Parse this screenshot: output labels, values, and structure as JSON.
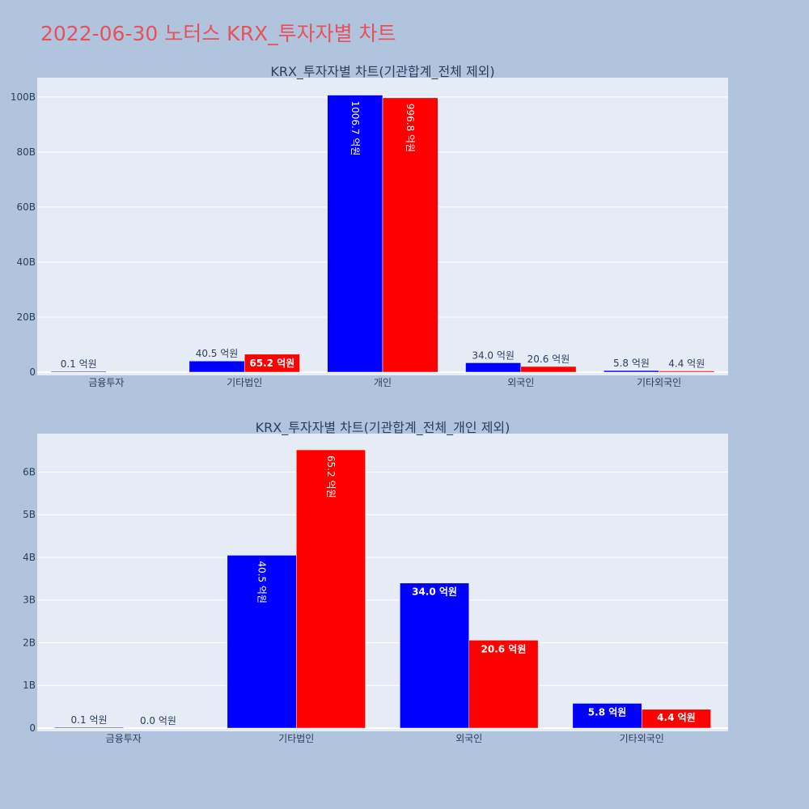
{
  "page_title": "2022-06-30 노터스 KRX_투자자별 차트",
  "colors": {
    "background": "#b0c4de",
    "plot_bg": "#e5ecf6",
    "series_a": "#0000ff",
    "series_b": "#ff0000",
    "title": "#e8505b"
  },
  "chart_data": [
    {
      "type": "bar",
      "title": "KRX_투자자별 차트(기관합계_전체 제외)",
      "categories": [
        "금융투자",
        "기타법인",
        "개인",
        "외국인",
        "기타외국인"
      ],
      "ylim": [
        0,
        107000000000
      ],
      "y_ticks": [
        0,
        20000000000,
        40000000000,
        60000000000,
        80000000000,
        100000000000
      ],
      "y_tick_labels": [
        "0",
        "20B",
        "40B",
        "60B",
        "80B",
        "100B"
      ],
      "grid": true,
      "series": [
        {
          "color": "#0000ff",
          "values": [
            10000000,
            4050000000,
            100670000000,
            3400000000,
            580000000
          ],
          "labels": [
            "0.1 억원",
            "40.5 억원",
            "1006.7 억원",
            "34.0 억원",
            "5.8 억원"
          ]
        },
        {
          "color": "#ff0000",
          "values": [
            0,
            6520000000,
            99680000000,
            2060000000,
            440000000
          ],
          "labels": [
            "",
            "65.2 억원",
            "996.8 억원",
            "20.6 억원",
            "4.4 억원"
          ]
        }
      ]
    },
    {
      "type": "bar",
      "title": "KRX_투자자별 차트(기관합계_전체_개인 제외)",
      "categories": [
        "금융투자",
        "기타법인",
        "외국인",
        "기타외국인"
      ],
      "ylim": [
        0,
        6900000000
      ],
      "y_ticks": [
        0,
        1000000000,
        2000000000,
        3000000000,
        4000000000,
        5000000000,
        6000000000
      ],
      "y_tick_labels": [
        "0",
        "1B",
        "2B",
        "3B",
        "4B",
        "5B",
        "6B"
      ],
      "grid": true,
      "series": [
        {
          "color": "#0000ff",
          "values": [
            10000000,
            4050000000,
            3400000000,
            580000000
          ],
          "labels": [
            "0.1 억원",
            "40.5 억원",
            "34.0 억원",
            "5.8 억원"
          ]
        },
        {
          "color": "#ff0000",
          "values": [
            0,
            6520000000,
            2060000000,
            440000000
          ],
          "labels": [
            "0.0 억원",
            "65.2 억원",
            "20.6 억원",
            "4.4 억원"
          ]
        }
      ]
    }
  ]
}
